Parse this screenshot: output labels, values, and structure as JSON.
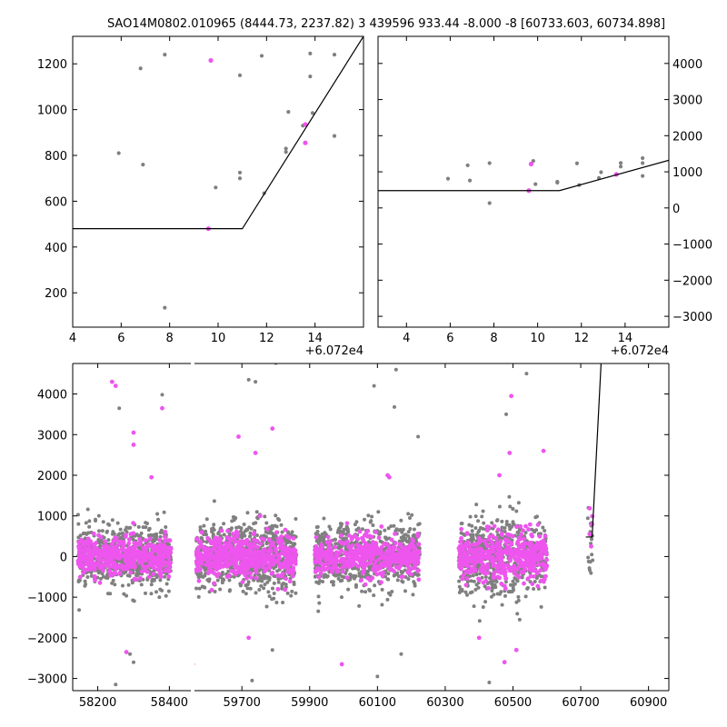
{
  "title": "SAO14M0802.010965 (8444.73, 2237.82)   3 439596 933.44 -8.000 -8 [60733.603, 60734.898]",
  "colors": {
    "gray": "#808080",
    "magenta": "#ee55ee",
    "line": "#000000"
  },
  "chart_data": [
    {
      "id": "zoom-left",
      "type": "scatter",
      "xlim": [
        60724.0,
        60736.0
      ],
      "ylim": [
        50,
        1320
      ],
      "x_offset_label": "+6.072e4",
      "xticks": [
        {
          "v": 60724,
          "label": "4"
        },
        {
          "v": 60726,
          "label": "6"
        },
        {
          "v": 60728,
          "label": "8"
        },
        {
          "v": 60730,
          "label": "10"
        },
        {
          "v": 60732,
          "label": "12"
        },
        {
          "v": 60734,
          "label": "14"
        }
      ],
      "yticks": [
        {
          "v": 200,
          "label": "200"
        },
        {
          "v": 400,
          "label": "400"
        },
        {
          "v": 600,
          "label": "600"
        },
        {
          "v": 800,
          "label": "800"
        },
        {
          "v": 1000,
          "label": "1000"
        },
        {
          "v": 1200,
          "label": "1200"
        }
      ],
      "series": [
        {
          "color": "gray",
          "points": [
            [
              60725.9,
              810
            ],
            [
              60726.8,
              1180
            ],
            [
              60726.9,
              760
            ],
            [
              60727.8,
              1240
            ],
            [
              60727.8,
              135
            ],
            [
              60729.7,
              1215
            ],
            [
              60729.9,
              660
            ],
            [
              60730.9,
              1150
            ],
            [
              60730.9,
              725
            ],
            [
              60730.9,
              700
            ],
            [
              60731.8,
              1235
            ],
            [
              60731.9,
              635
            ],
            [
              60732.8,
              830
            ],
            [
              60732.9,
              990
            ],
            [
              60732.8,
              815
            ],
            [
              60733.8,
              1245
            ],
            [
              60733.8,
              1145
            ],
            [
              60733.9,
              985
            ],
            [
              60734.8,
              1240
            ],
            [
              60734.8,
              885
            ],
            [
              60733.5,
              930
            ]
          ]
        },
        {
          "color": "magenta",
          "points": [
            [
              60729.7,
              1215
            ],
            [
              60729.6,
              480
            ],
            [
              60733.6,
              935
            ],
            [
              60733.6,
              855
            ]
          ]
        }
      ],
      "line": [
        [
          60724.0,
          480
        ],
        [
          60731.0,
          480
        ],
        [
          60736.0,
          1320
        ]
      ]
    },
    {
      "id": "zoom-right",
      "type": "scatter",
      "xlim": [
        60722.7,
        60736.0
      ],
      "ylim": [
        -3300,
        4750
      ],
      "x_offset_label": "+6.072e4",
      "xticks": [
        {
          "v": 60724,
          "label": "4"
        },
        {
          "v": 60726,
          "label": "6"
        },
        {
          "v": 60728,
          "label": "8"
        },
        {
          "v": 60730,
          "label": "10"
        },
        {
          "v": 60732,
          "label": "12"
        },
        {
          "v": 60734,
          "label": "14"
        }
      ],
      "yticks": [
        {
          "v": -3000,
          "label": "−3000"
        },
        {
          "v": -2000,
          "label": "−2000"
        },
        {
          "v": -1000,
          "label": "−1000"
        },
        {
          "v": 0,
          "label": "0"
        },
        {
          "v": 1000,
          "label": "1000"
        },
        {
          "v": 2000,
          "label": "2000"
        },
        {
          "v": 3000,
          "label": "3000"
        },
        {
          "v": 4000,
          "label": "4000"
        }
      ],
      "series": [
        {
          "color": "gray",
          "points": [
            [
              60725.9,
              810
            ],
            [
              60726.8,
              1180
            ],
            [
              60726.9,
              760
            ],
            [
              60727.8,
              1240
            ],
            [
              60727.8,
              135
            ],
            [
              60729.8,
              1300
            ],
            [
              60729.9,
              660
            ],
            [
              60730.9,
              700
            ],
            [
              60730.9,
              725
            ],
            [
              60731.8,
              1235
            ],
            [
              60731.9,
              635
            ],
            [
              60732.8,
              830
            ],
            [
              60732.9,
              990
            ],
            [
              60733.8,
              1245
            ],
            [
              60733.8,
              1145
            ],
            [
              60734.8,
              1240
            ],
            [
              60734.8,
              1380
            ],
            [
              60734.8,
              885
            ]
          ]
        },
        {
          "color": "magenta",
          "points": [
            [
              60729.7,
              1215
            ],
            [
              60729.6,
              480
            ],
            [
              60733.6,
              930
            ]
          ]
        }
      ],
      "line": [
        [
          60722.7,
          480
        ],
        [
          60731.0,
          480
        ],
        [
          60736.0,
          1320
        ]
      ]
    },
    {
      "id": "full-light-curve",
      "type": "scatter",
      "ylim": [
        -3300,
        4750
      ],
      "segments": [
        {
          "xlim": [
            58130,
            58460
          ]
        },
        {
          "xlim": [
            59560,
            60960
          ]
        }
      ],
      "xticks": [
        {
          "v": 58200,
          "label": "58200"
        },
        {
          "v": 58400,
          "label": "58400"
        },
        {
          "v": 59700,
          "label": "59700"
        },
        {
          "v": 59900,
          "label": "59900"
        },
        {
          "v": 60100,
          "label": "60100"
        },
        {
          "v": 60300,
          "label": "60300"
        },
        {
          "v": 60500,
          "label": "60500"
        },
        {
          "v": 60700,
          "label": "60700"
        },
        {
          "v": 60900,
          "label": "60900"
        }
      ],
      "yticks": [
        {
          "v": -3000,
          "label": "−3000"
        },
        {
          "v": -2000,
          "label": "−2000"
        },
        {
          "v": -1000,
          "label": "−1000"
        },
        {
          "v": 0,
          "label": "0"
        },
        {
          "v": 1000,
          "label": "1000"
        },
        {
          "v": 2000,
          "label": "2000"
        },
        {
          "v": 3000,
          "label": "3000"
        },
        {
          "v": 4000,
          "label": "4000"
        }
      ],
      "clusters": [
        {
          "x_range": [
            58145,
            58405
          ],
          "n_gray": 620,
          "n_magenta": 480,
          "sigma": 420
        },
        {
          "x_range": [
            59565,
            59860
          ],
          "n_gray": 700,
          "n_magenta": 520,
          "sigma": 480
        },
        {
          "x_range": [
            59915,
            60225
          ],
          "n_gray": 700,
          "n_magenta": 480,
          "sigma": 450
        },
        {
          "x_range": [
            60340,
            60600
          ],
          "n_gray": 620,
          "n_magenta": 440,
          "sigma": 520
        },
        {
          "x_range": [
            60720,
            60736
          ],
          "n_gray": 18,
          "n_magenta": 5,
          "sigma": 450
        }
      ],
      "outliers": {
        "gray": [
          [
            58250,
            -3150
          ],
          [
            58290,
            -2400
          ],
          [
            58300,
            -2600
          ],
          [
            58380,
            3980
          ],
          [
            59720,
            4350
          ],
          [
            59730,
            -3050
          ],
          [
            59740,
            4300
          ],
          [
            59800,
            4760
          ],
          [
            59790,
            -2300
          ],
          [
            60090,
            4200
          ],
          [
            60100,
            -2950
          ],
          [
            60155,
            4600
          ],
          [
            60150,
            3680
          ],
          [
            60430,
            -3100
          ],
          [
            60480,
            3500
          ],
          [
            60540,
            4500
          ],
          [
            60220,
            2950
          ],
          [
            58260,
            3650
          ],
          [
            60170,
            -2400
          ]
        ],
        "magenta": [
          [
            58240,
            4300
          ],
          [
            58250,
            4200
          ],
          [
            58300,
            3050
          ],
          [
            58300,
            2750
          ],
          [
            58380,
            3650
          ],
          [
            58350,
            1950
          ],
          [
            58280,
            -2350
          ],
          [
            59690,
            2950
          ],
          [
            59740,
            2550
          ],
          [
            59790,
            3150
          ],
          [
            59555,
            -2650
          ],
          [
            59720,
            -2000
          ],
          [
            60130,
            2000
          ],
          [
            60135,
            1950
          ],
          [
            59995,
            -2650
          ],
          [
            60460,
            2000
          ],
          [
            60475,
            -2600
          ],
          [
            60495,
            3950
          ],
          [
            60490,
            2550
          ],
          [
            60590,
            2600
          ],
          [
            60400,
            -2000
          ],
          [
            60510,
            -2300
          ]
        ]
      },
      "line": [
        [
          60715,
          480
        ],
        [
          60733.6,
          480
        ],
        [
          60760,
          4750
        ]
      ]
    }
  ]
}
